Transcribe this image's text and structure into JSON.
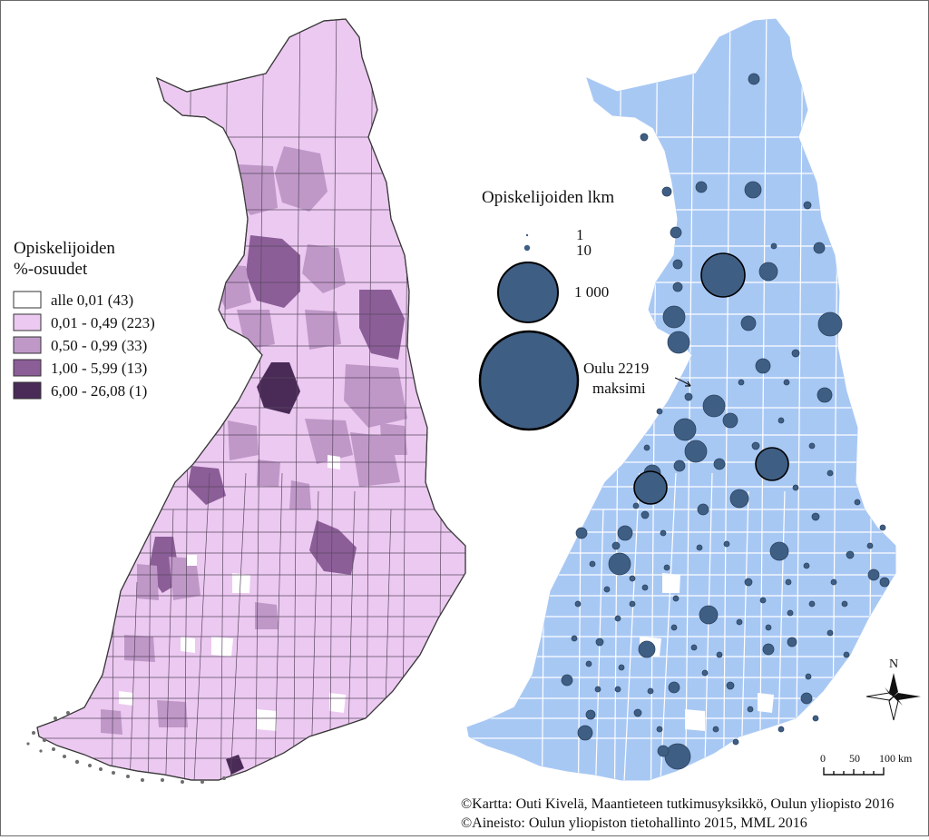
{
  "left_map": {
    "legend": {
      "title_line1": "Opiskelijoiden",
      "title_line2": "%-osuudet",
      "classes": [
        {
          "label": "alle 0,01 (43)",
          "color": "#ffffff"
        },
        {
          "label": "0,01 - 0,49 (223)",
          "color": "#ecc9f1"
        },
        {
          "label": "0,50 - 0,99 (33)",
          "color": "#bf98c8"
        },
        {
          "label": "1,00 - 5,99 (13)",
          "color": "#8c5e98"
        },
        {
          "label": "6,00 - 26,08 (1)",
          "color": "#4a2a57"
        }
      ]
    }
  },
  "right_map": {
    "fill_color": "#a8c8f4",
    "symbol_color": "#3f5e83",
    "legend": {
      "title": "Opiskelijoiden lkm",
      "items": [
        {
          "label": "1",
          "value": 1
        },
        {
          "label": "10",
          "value": 10
        },
        {
          "label": "1 000",
          "value": 1000
        }
      ],
      "max_label_line1": "Oulu 2219",
      "max_label_line2": "maksimi",
      "max_value": 2219
    }
  },
  "north_arrow": {
    "label": "N"
  },
  "scale_bar": {
    "ticks": [
      "0",
      "50",
      "100 km"
    ]
  },
  "credits": {
    "line1": "©Kartta: Outi Kivelä, Maantieteen tutkimusyksikkö, Oulun yliopisto 2016",
    "line2": "©Aineisto:  Oulun  yliopiston  tietohallinto  2015,  MML  2016"
  }
}
